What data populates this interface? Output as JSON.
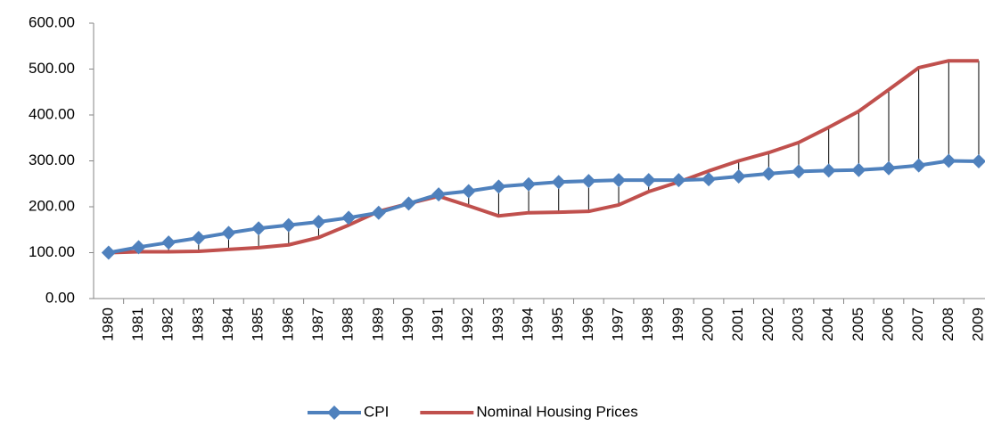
{
  "chart_data": {
    "type": "line",
    "categories": [
      "1980",
      "1981",
      "1982",
      "1983",
      "1984",
      "1985",
      "1986",
      "1987",
      "1988",
      "1989",
      "1990",
      "1991",
      "1992",
      "1993",
      "1994",
      "1995",
      "1996",
      "1997",
      "1998",
      "1999",
      "2000",
      "2001",
      "2002",
      "2003",
      "2004",
      "2005",
      "2006",
      "2007",
      "2008",
      "2009"
    ],
    "series": [
      {
        "name": "CPI",
        "color": "#4f81bd",
        "marker": "diamond",
        "values": [
          100,
          112,
          122,
          132,
          143,
          153,
          160,
          167,
          176,
          187,
          207,
          227,
          234,
          244,
          249,
          254,
          256,
          258,
          258,
          258,
          260,
          266,
          272,
          277,
          279,
          280,
          284,
          290,
          300,
          299
        ]
      },
      {
        "name": "Nominal Housing Prices",
        "color": "#c0504d",
        "marker": "none",
        "values": [
          100,
          102,
          102,
          103,
          107,
          111,
          117,
          133,
          160,
          190,
          207,
          223,
          202,
          180,
          187,
          188,
          190,
          204,
          233,
          254,
          278,
          300,
          318,
          340,
          373,
          408,
          455,
          503,
          518,
          518
        ]
      }
    ],
    "ylim": [
      0,
      600
    ],
    "yticks": [
      {
        "value": 0,
        "label": "0.00"
      },
      {
        "value": 100,
        "label": "100.00"
      },
      {
        "value": 200,
        "label": "200.00"
      },
      {
        "value": 300,
        "label": "300.00"
      },
      {
        "value": 400,
        "label": "400.00"
      },
      {
        "value": 500,
        "label": "500.00"
      },
      {
        "value": 600,
        "label": "600.00"
      }
    ],
    "grid": false,
    "hi_lo_lines": true,
    "legend": "bottom"
  }
}
